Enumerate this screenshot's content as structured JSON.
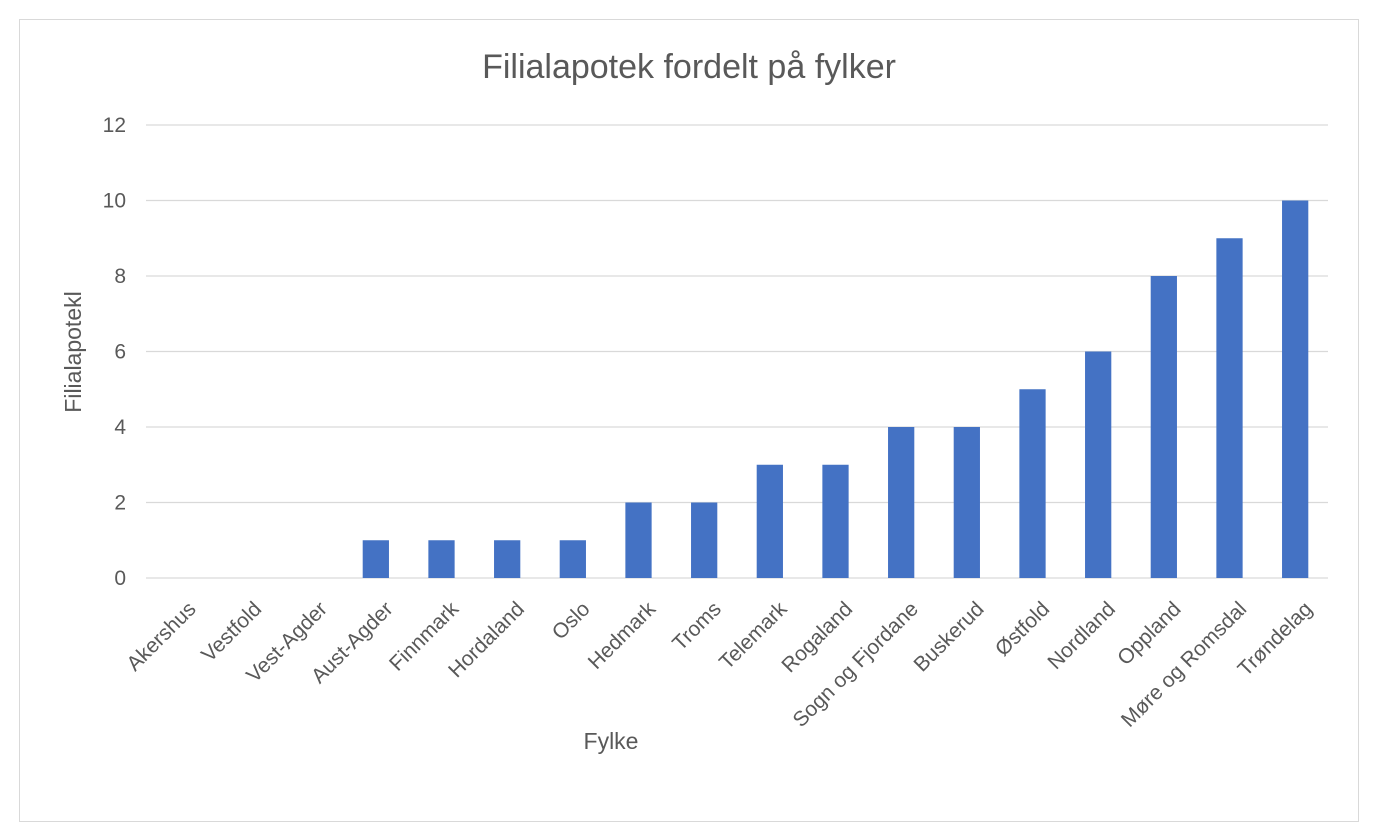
{
  "chart_data": {
    "type": "bar",
    "title": "Filialapotek fordelt på fylker",
    "xlabel": "Fylke",
    "ylabel": "Filialapotekl",
    "categories": [
      "Akershus",
      "Vestfold",
      "Vest-Agder",
      "Aust-Agder",
      "Finnmark",
      "Hordaland",
      "Oslo",
      "Hedmark",
      "Troms",
      "Telemark",
      "Rogaland",
      "Sogn og Fjordane",
      "Buskerud",
      "Østfold",
      "Nordland",
      "Oppland",
      "Møre og Romsdal",
      "Trøndelag"
    ],
    "values": [
      0,
      0,
      0,
      1,
      1,
      1,
      1,
      2,
      2,
      3,
      3,
      4,
      4,
      5,
      6,
      8,
      9,
      10
    ],
    "ylim": [
      0,
      12
    ],
    "yticks": [
      "0",
      "2",
      "4",
      "6",
      "8",
      "10",
      "12"
    ],
    "grid": true,
    "legend": "none",
    "bar_color": "#4472c4"
  }
}
